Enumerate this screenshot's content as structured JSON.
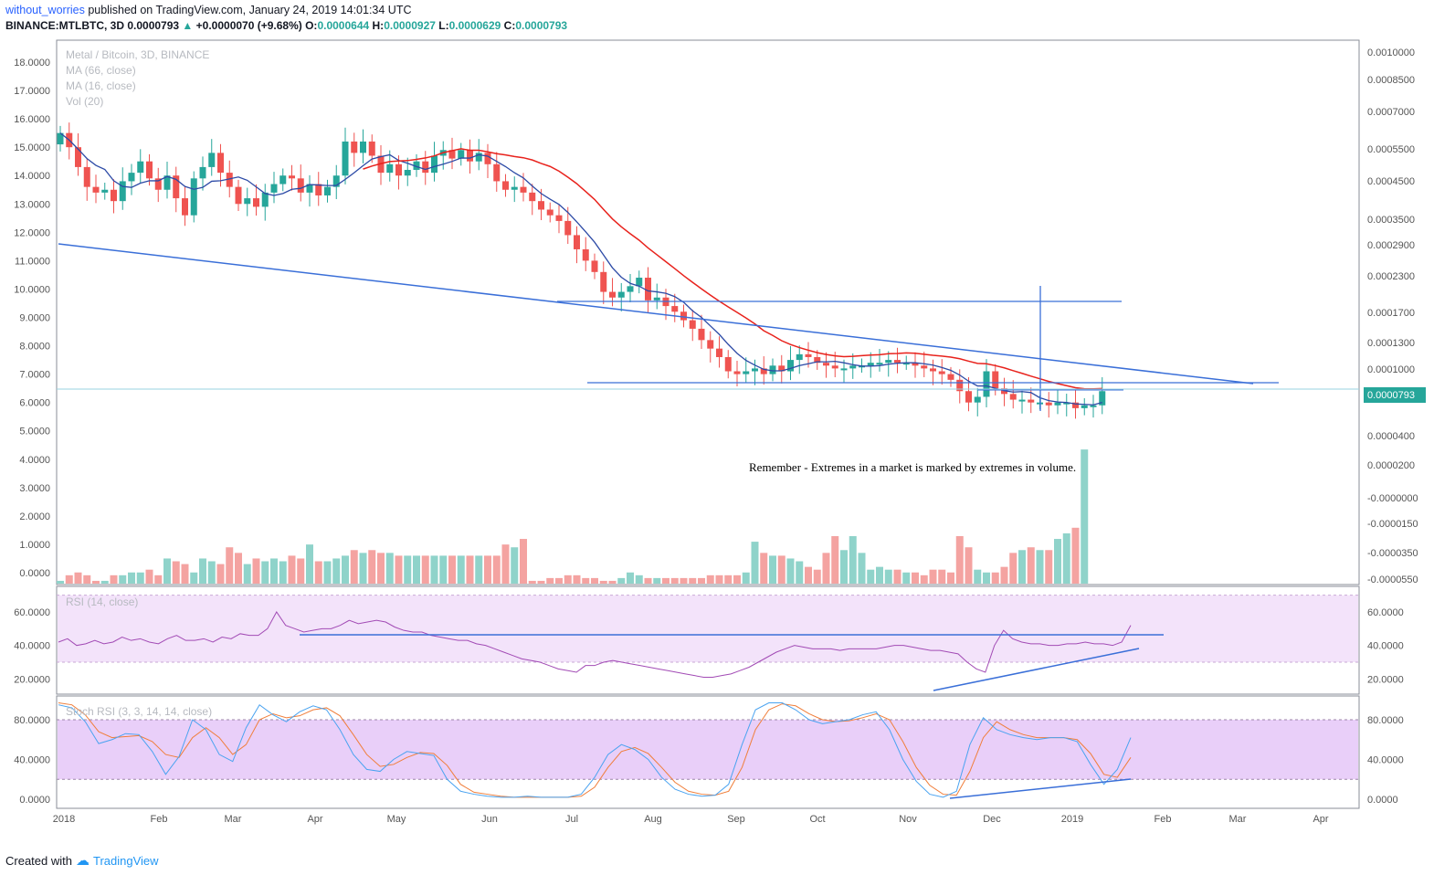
{
  "header": {
    "author": "without_worries",
    "published_text": "published on TradingView.com, January 24, 2019 14:01:34 UTC",
    "symbol_line": "BINANCE:MTLBTC, 3D",
    "last": "0.0000793",
    "change": "+0.0000070 (+9.68%)",
    "o_label": "O:",
    "o": "0.0000644",
    "h_label": "H:",
    "h": "0.0000927",
    "l_label": "L:",
    "l": "0.0000629",
    "c_label": "C:",
    "c": "0.0000793"
  },
  "legend": {
    "title": "Metal / Bitcoin, 3D, BINANCE",
    "ma1": "MA (66, close)",
    "ma2": "MA (16, close)",
    "vol": "Vol (20)",
    "rsi": "RSI (14, close)",
    "stoch": "Stoch RSI (3, 3, 14, 14, close)"
  },
  "annotation": "Remember - Extremes in a market is marked by extremes in volume.",
  "price_tag": "0.0000793",
  "footer": {
    "created_with": "Created with",
    "brand": "TradingView"
  },
  "colors": {
    "up": "#26a69a",
    "down": "#ef5350",
    "vol_up": "#8fd3ca",
    "vol_down": "#f4a3a1",
    "ma66": "#e8221c",
    "ma16": "#2c4aa6",
    "trend": "#3a6fd8",
    "rsi_line": "#a24bb5",
    "rsi_band": "#f3e3fa",
    "stoch_band": "#e9cff9",
    "stoch_k": "#4aa3f0",
    "stoch_d": "#f07e3a"
  },
  "chart_data": [
    {
      "type": "candlestick",
      "title": "Metal / Bitcoin, 3D, BINANCE",
      "left_axis_ticks": [
        "18.0000",
        "17.0000",
        "16.0000",
        "15.0000",
        "14.0000",
        "13.0000",
        "12.0000",
        "11.0000",
        "10.0000",
        "9.0000",
        "8.0000",
        "7.0000",
        "6.0000",
        "5.0000",
        "4.0000",
        "3.0000",
        "2.0000",
        "1.0000",
        "0.0000"
      ],
      "right_axis_ticks": [
        "0.0010000",
        "0.0008500",
        "0.0007000",
        "0.0005500",
        "0.0004500",
        "0.0003500",
        "0.0002900",
        "0.0002300",
        "0.0001700",
        "0.0001300",
        "0.0001000",
        "0.0000700",
        "0.0000400",
        "0.0000200",
        "-0.0000000",
        "-0.0000150",
        "-0.0000350",
        "-0.0000550"
      ],
      "x_axis_ticks": [
        "2018",
        "Feb",
        "Mar",
        "Apr",
        "May",
        "Jun",
        "Jul",
        "Aug",
        "Sep",
        "Oct",
        "Nov",
        "Dec",
        "2019",
        "Feb",
        "Mar",
        "Apr"
      ],
      "last_price": "0.0000793",
      "series": [
        {
          "name": "MA (66, close)",
          "trend": "declining from about 14.8 in May 2018 to about 7.1 in Jan 2019"
        },
        {
          "name": "MA (16, close)",
          "trend": "from about 14.4 in Jan 2018 down to about 6.0 in Jan 2019"
        }
      ],
      "left_scale_values": [
        15.5,
        15.0,
        14.3,
        13.6,
        13.4,
        13.5,
        13.1,
        13.8,
        14.1,
        14.5,
        13.9,
        13.5,
        14.0,
        13.2,
        12.6,
        13.9,
        14.3,
        14.8,
        14.1,
        13.6,
        13.0,
        13.2,
        12.9,
        13.4,
        13.7,
        14.0,
        13.9,
        13.4,
        13.7,
        13.3,
        13.6,
        14.0,
        15.2,
        14.8,
        15.2,
        14.7,
        14.1,
        14.4,
        14.0,
        14.2,
        14.5,
        14.1,
        14.7,
        14.9,
        14.6,
        14.9,
        14.5,
        14.8,
        14.4,
        13.8,
        13.5,
        13.6,
        13.4,
        13.1,
        12.8,
        12.6,
        12.4,
        11.9,
        11.4,
        11.0,
        10.6,
        9.9,
        9.7,
        9.9,
        10.1,
        10.4,
        9.6,
        9.7,
        9.4,
        9.2,
        8.9,
        8.6,
        8.2,
        7.9,
        7.6,
        7.1,
        7.0,
        7.1,
        7.2,
        7.0,
        7.3,
        7.1,
        7.5,
        7.7,
        7.6,
        7.4,
        7.3,
        7.2,
        7.2,
        7.3,
        7.3,
        7.4,
        7.4,
        7.5,
        7.4,
        7.4,
        7.3,
        7.2,
        7.1,
        7.0,
        6.8,
        6.4,
        6.0,
        6.2,
        7.1,
        6.5,
        6.3,
        6.1,
        6.1,
        6.0,
        6.0,
        5.9,
        6.0,
        6.0,
        5.8,
        5.9,
        5.9,
        6.4
      ],
      "volume_values": [
        0.1,
        0.3,
        0.4,
        0.3,
        0.1,
        0.1,
        0.3,
        0.3,
        0.4,
        0.4,
        0.5,
        0.3,
        0.9,
        0.8,
        0.7,
        0.4,
        0.9,
        0.8,
        0.7,
        1.3,
        1.1,
        0.7,
        0.9,
        0.8,
        0.9,
        0.8,
        1.0,
        0.9,
        1.4,
        0.8,
        0.8,
        0.9,
        1.0,
        1.2,
        1.1,
        1.2,
        1.1,
        1.1,
        1.0,
        1.0,
        1.0,
        1.0,
        1.0,
        1.0,
        1.0,
        1.0,
        1.0,
        1.0,
        1.0,
        1.0,
        1.4,
        1.3,
        1.6,
        0.1,
        0.1,
        0.2,
        0.2,
        0.3,
        0.3,
        0.2,
        0.2,
        0.1,
        0.1,
        0.2,
        0.4,
        0.3,
        0.2,
        0.2,
        0.2,
        0.2,
        0.2,
        0.2,
        0.2,
        0.3,
        0.3,
        0.3,
        0.3,
        0.4,
        1.5,
        1.1,
        1.0,
        1.0,
        0.9,
        0.8,
        0.6,
        0.5,
        1.1,
        1.7,
        1.2,
        1.7,
        1.1,
        0.5,
        0.6,
        0.5,
        0.5,
        0.4,
        0.4,
        0.3,
        0.5,
        0.5,
        0.4,
        1.7,
        1.3,
        0.5,
        0.4,
        0.4,
        0.6,
        1.1,
        1.2,
        1.3,
        1.2,
        1.2,
        1.6,
        1.8,
        2.0,
        4.8
      ],
      "annotations": [
        "Remember - Extremes in a market is marked by extremes in volume."
      ]
    },
    {
      "type": "line",
      "title": "RSI (14, close)",
      "y_axis_ticks": [
        "60.0000",
        "40.0000",
        "20.0000"
      ],
      "ylim": [
        20,
        65
      ],
      "bands": [
        30,
        70
      ],
      "values": [
        42,
        44,
        40,
        41,
        43,
        41,
        42,
        45,
        43,
        44,
        42,
        41,
        44,
        46,
        43,
        43,
        44,
        42,
        45,
        44,
        47,
        46,
        46,
        50,
        60,
        52,
        50,
        48,
        49,
        50,
        50,
        52,
        55,
        53,
        54,
        55,
        54,
        51,
        49,
        48,
        48,
        46,
        45,
        44,
        43,
        43,
        41,
        40,
        38,
        36,
        34,
        32,
        31,
        30,
        28,
        26,
        25,
        24,
        28,
        28,
        30,
        31,
        30,
        29,
        28,
        27,
        26,
        25,
        24,
        23,
        22,
        21,
        21,
        22,
        23,
        25,
        27,
        30,
        33,
        36,
        38,
        40,
        39,
        38,
        38,
        38,
        37,
        38,
        38,
        38,
        38,
        39,
        40,
        40,
        39,
        38,
        37,
        37,
        36,
        35,
        30,
        26,
        24,
        40,
        49,
        44,
        42,
        41,
        41,
        40,
        40,
        41,
        41,
        42,
        41,
        41,
        40,
        42,
        52
      ]
    },
    {
      "type": "line",
      "title": "Stoch RSI (3, 3, 14, 14, close)",
      "y_axis_ticks": [
        "80.0000",
        "40.0000",
        "0.0000"
      ],
      "ylim": [
        0,
        100
      ],
      "bands": [
        20,
        80
      ],
      "series": [
        {
          "name": "K",
          "values": [
            95,
            92,
            78,
            56,
            60,
            66,
            65,
            48,
            25,
            43,
            80,
            70,
            45,
            38,
            72,
            95,
            85,
            78,
            88,
            94,
            90,
            70,
            45,
            30,
            28,
            40,
            48,
            46,
            44,
            20,
            8,
            5,
            3,
            2,
            2,
            3,
            2,
            2,
            2,
            5,
            22,
            45,
            55,
            50,
            40,
            22,
            10,
            5,
            3,
            4,
            15,
            55,
            90,
            97,
            97,
            90,
            80,
            76,
            78,
            80,
            85,
            88,
            70,
            40,
            18,
            5,
            2,
            8,
            55,
            82,
            70,
            65,
            62,
            60,
            62,
            62,
            58,
            35,
            15,
            30,
            62
          ]
        },
        {
          "name": "D",
          "values": [
            97,
            95,
            85,
            68,
            62,
            63,
            64,
            58,
            45,
            42,
            62,
            72,
            62,
            45,
            55,
            80,
            86,
            82,
            84,
            90,
            92,
            84,
            65,
            45,
            33,
            35,
            42,
            47,
            46,
            34,
            15,
            7,
            5,
            3,
            2,
            2,
            2,
            2,
            2,
            3,
            12,
            32,
            48,
            52,
            46,
            32,
            17,
            8,
            5,
            4,
            8,
            32,
            70,
            90,
            96,
            94,
            86,
            80,
            78,
            79,
            82,
            86,
            80,
            58,
            32,
            14,
            5,
            4,
            28,
            62,
            78,
            70,
            65,
            62,
            62,
            62,
            60,
            46,
            25,
            22,
            42
          ]
        }
      ]
    }
  ]
}
